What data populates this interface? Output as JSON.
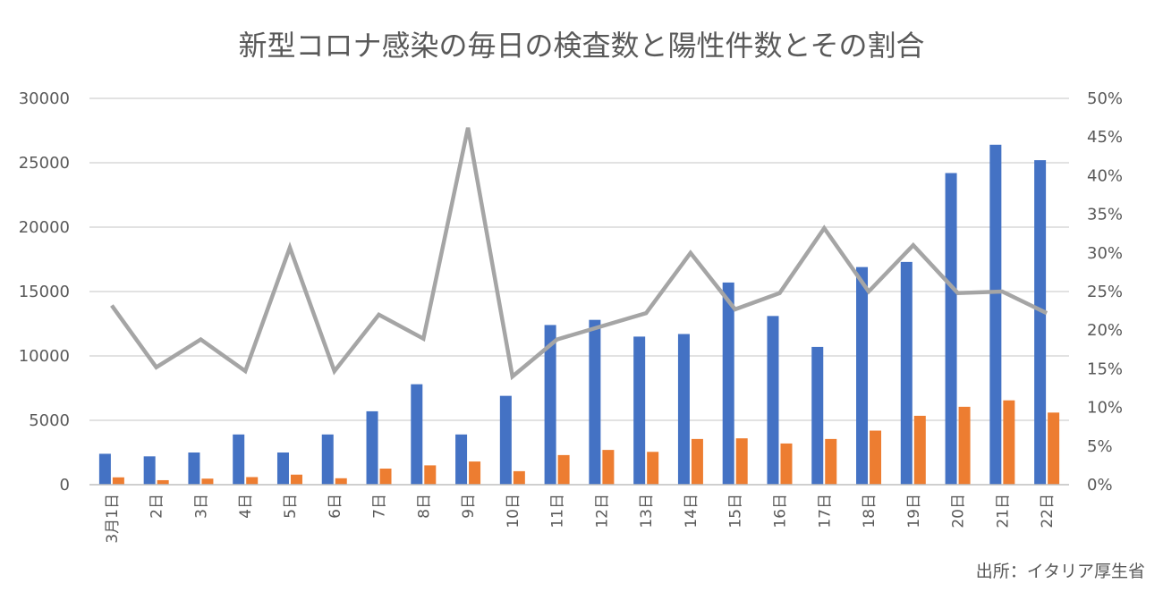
{
  "chart_data": {
    "type": "bar",
    "title": "新型コロナ感染の毎日の検査数と陽性件数とその割合",
    "categories": [
      "3月1日",
      "2日",
      "3日",
      "4日",
      "5日",
      "6日",
      "7日",
      "8日",
      "9日",
      "10日",
      "11日",
      "12日",
      "13日",
      "14日",
      "15日",
      "16日",
      "17日",
      "18日",
      "19日",
      "20日",
      "21日",
      "22日"
    ],
    "series": [
      {
        "type": "bar",
        "axis": "left",
        "color": "#4472c4",
        "values": [
          2400,
          2200,
          2500,
          3900,
          2500,
          3900,
          5700,
          7800,
          3900,
          6900,
          12400,
          12800,
          11500,
          11700,
          15700,
          13100,
          10700,
          16900,
          17300,
          24200,
          26400,
          25200
        ]
      },
      {
        "type": "bar",
        "axis": "right",
        "color": "#ed7d31",
        "axis_note": "left",
        "values": [
          570,
          350,
          470,
          590,
          780,
          500,
          1250,
          1500,
          1800,
          1050,
          2300,
          2700,
          2550,
          3550,
          3600,
          3200,
          3550,
          4200,
          5350,
          6050,
          6550,
          5600
        ]
      },
      {
        "type": "line",
        "axis": "right",
        "color": "#a5a5a5",
        "values": [
          0.232,
          0.152,
          0.188,
          0.147,
          0.307,
          0.147,
          0.22,
          0.189,
          0.462,
          0.14,
          0.188,
          0.205,
          0.222,
          0.3,
          0.227,
          0.248,
          0.332,
          0.25,
          0.31,
          0.248,
          0.25,
          0.222
        ]
      }
    ],
    "ylim": [
      0,
      30000
    ],
    "yticks": [
      "0",
      "5000",
      "10000",
      "15000",
      "20000",
      "25000",
      "30000"
    ],
    "y2lim": [
      0,
      0.5
    ],
    "y2ticks": [
      "0%",
      "5%",
      "10%",
      "15%",
      "20%",
      "25%",
      "30%",
      "35%",
      "40%",
      "45%",
      "50%"
    ],
    "grid": true,
    "legend": "none",
    "source": "出所：イタリア厚生省"
  }
}
